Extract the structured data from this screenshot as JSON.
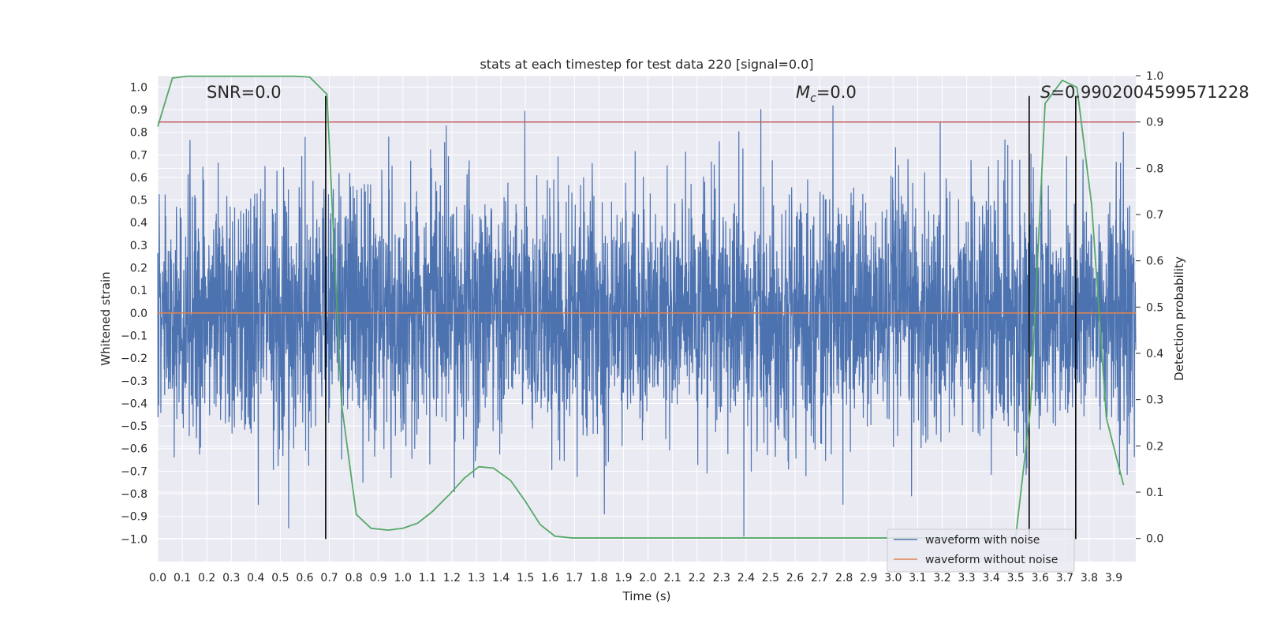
{
  "chart_data": {
    "type": "line",
    "title": "stats at each timestep for test data 220 [signal=0.0]",
    "xlabel": "Time (s)",
    "ylabel": "Whitened strain",
    "ylabel_right": "Detection probability",
    "xlim": [
      0.0,
      3.99
    ],
    "ylim": [
      -1.1,
      1.05
    ],
    "ylim_right": [
      -0.05,
      1.0
    ],
    "x_ticks": [
      "0.0",
      "0.1",
      "0.2",
      "0.3",
      "0.4",
      "0.5",
      "0.6",
      "0.7",
      "0.8",
      "0.9",
      "1.0",
      "1.1",
      "1.2",
      "1.3",
      "1.4",
      "1.5",
      "1.6",
      "1.7",
      "1.8",
      "1.9",
      "2.0",
      "2.1",
      "2.2",
      "2.3",
      "2.4",
      "2.5",
      "2.6",
      "2.7",
      "2.8",
      "2.9",
      "3.0",
      "3.1",
      "3.2",
      "3.3",
      "3.4",
      "3.5",
      "3.6",
      "3.7",
      "3.8",
      "3.9"
    ],
    "y_ticks": [
      "1.0",
      "0.9",
      "0.8",
      "0.7",
      "0.6",
      "0.5",
      "0.4",
      "0.3",
      "0.2",
      "0.1",
      "0.0",
      "−0.1",
      "−0.2",
      "−0.3",
      "−0.4",
      "−0.5",
      "−0.6",
      "−0.7",
      "−0.8",
      "−0.9",
      "−1.0"
    ],
    "y_ticks_right": [
      "1.0",
      "0.9",
      "0.8",
      "0.7",
      "0.6",
      "0.5",
      "0.4",
      "0.3",
      "0.2",
      "0.1",
      "0.0"
    ],
    "annotations": {
      "snr": "SNR=0.0",
      "mc_symbol": "M",
      "mc_sub": "c",
      "mc_value": "=0.0",
      "s_symbol": "S",
      "s_value": "=0.9902004599571228"
    },
    "threshold_right": 0.9,
    "vertical_lines_x": [
      0.685,
      3.555,
      3.745
    ],
    "series": [
      {
        "name": "waveform with noise",
        "color": "#4c72b0",
        "description": "dense random noise, approx. between -1.0 and 1.0"
      },
      {
        "name": "waveform without noise",
        "color": "#dd8452",
        "values": "flat at 0.0"
      },
      {
        "name": "detection probability",
        "color": "#55a868",
        "axis": "right",
        "x": [
          0.0,
          0.06,
          0.12,
          0.19,
          0.25,
          0.31,
          0.37,
          0.44,
          0.5,
          0.56,
          0.62,
          0.69,
          0.75,
          0.81,
          0.87,
          0.94,
          1.0,
          1.06,
          1.12,
          1.19,
          1.25,
          1.31,
          1.37,
          1.44,
          1.5,
          1.56,
          1.62,
          1.69,
          1.75,
          1.81,
          1.87,
          1.94,
          2.0,
          2.06,
          2.12,
          2.19,
          2.25,
          2.31,
          2.37,
          2.44,
          2.5,
          2.56,
          2.62,
          2.69,
          2.75,
          2.81,
          2.87,
          2.94,
          3.0,
          3.06,
          3.12,
          3.19,
          3.25,
          3.31,
          3.37,
          3.44,
          3.5,
          3.56,
          3.62,
          3.69,
          3.75,
          3.81,
          3.87,
          3.94
        ],
        "values": [
          0.89,
          0.995,
          0.999,
          0.999,
          0.999,
          0.999,
          0.999,
          0.999,
          0.999,
          0.999,
          0.997,
          0.96,
          0.29,
          0.052,
          0.022,
          0.018,
          0.022,
          0.033,
          0.058,
          0.095,
          0.13,
          0.155,
          0.152,
          0.125,
          0.08,
          0.03,
          0.005,
          0.001,
          0.001,
          0.001,
          0.001,
          0.001,
          0.001,
          0.001,
          0.001,
          0.001,
          0.001,
          0.001,
          0.001,
          0.001,
          0.001,
          0.001,
          0.001,
          0.001,
          0.001,
          0.001,
          0.001,
          0.001,
          0.001,
          0.001,
          0.001,
          0.001,
          0.001,
          0.001,
          0.001,
          0.001,
          0.003,
          0.28,
          0.94,
          0.99,
          0.975,
          0.72,
          0.26,
          0.115
        ]
      }
    ],
    "legend": [
      "waveform with noise",
      "waveform without noise"
    ],
    "legend_position": "lower-right",
    "colors": {
      "background": "#eaeaf2",
      "grid": "#ffffff",
      "noise": "#4c72b0",
      "clean": "#dd8452",
      "probability": "#55a868",
      "threshold": "#c44e52",
      "vlines": "#000000"
    }
  }
}
